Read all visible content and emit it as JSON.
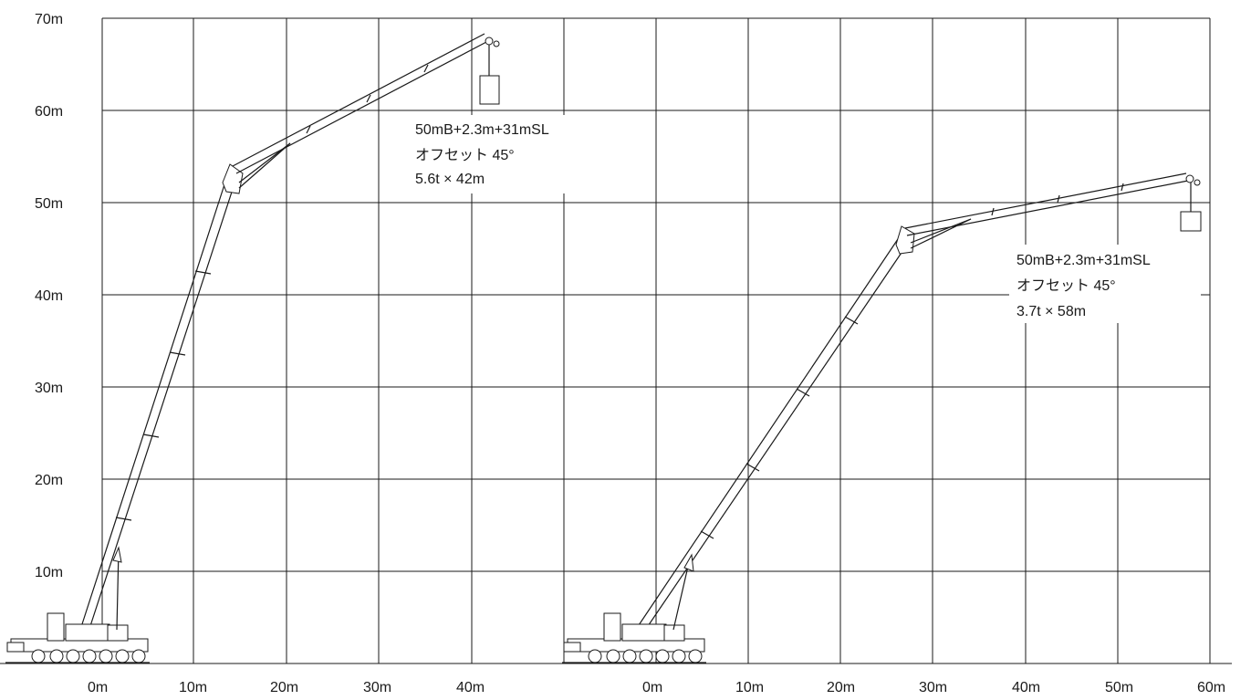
{
  "y_axis": {
    "ticks": [
      "10m",
      "20m",
      "30m",
      "40m",
      "50m",
      "60m",
      "70m"
    ]
  },
  "x_axis_left": {
    "ticks": [
      "0m",
      "10m",
      "20m",
      "30m",
      "40m"
    ]
  },
  "x_axis_right": {
    "ticks": [
      "0m",
      "10m",
      "20m",
      "30m",
      "40m",
      "50m",
      "60m"
    ]
  },
  "configurations": [
    {
      "lines": [
        "50mB+2.3m+31mSL",
        "オフセット 45°",
        "5.6t × 42m"
      ]
    },
    {
      "lines": [
        "50mB+2.3m+31mSL",
        "オフセット 45°",
        "3.7t × 58m"
      ]
    }
  ]
}
